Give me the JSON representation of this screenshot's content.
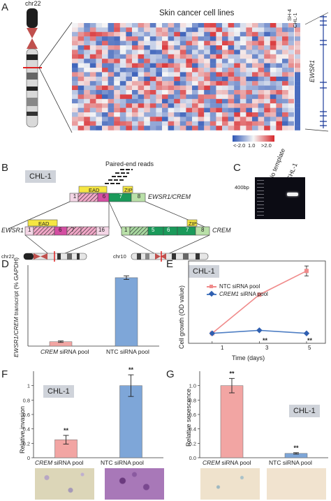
{
  "panels": {
    "A": {
      "letter": "A",
      "chrom_label": "chr22",
      "heatmap_title": "Skin cancer cell lines",
      "col_labels": [
        "SH-4",
        "CHL-1"
      ],
      "gene_label": "EWSR1",
      "legend_ticks": [
        "<-2.0",
        "1.0",
        ">2.0"
      ],
      "colors": {
        "low": "#2c55b5",
        "mid": "#f6f6f6",
        "high": "#d7262a"
      }
    },
    "B": {
      "letter": "B",
      "cell_line": "CHL-1",
      "reads_label": "Paired-end reads",
      "fusion_label": "EWSR1/CREM",
      "ewsr1_label": "EWSR1",
      "crem_label": "CREM",
      "ead_label": "EAD",
      "zip_label": "ZIP",
      "fusion_exons": [
        "1",
        "6",
        "7",
        "8"
      ],
      "ewsr1_exons": [
        "1",
        "6",
        "7",
        "16"
      ],
      "crem_exons": [
        "1",
        "5",
        "6",
        "7",
        "8"
      ],
      "chr22_label": "chr22",
      "chr10_label": "chr10"
    },
    "C": {
      "letter": "C",
      "lane_labels": [
        "No template",
        "CHL-1"
      ],
      "size_label": "400bp"
    },
    "D": {
      "letter": "D",
      "ylabel_italic": "EWSR1/CREM",
      "ylabel_rest": " transcript (% GAPDH)",
      "categories": [
        {
          "italic": "CREM",
          "rest": " siRNA pool"
        },
        {
          "italic": "",
          "rest": "NTC siRNA pool"
        }
      ]
    },
    "E": {
      "letter": "E",
      "cell_line": "CHL-1",
      "ylabel": "Cell growth (OD value)",
      "xlabel": "Time (days)",
      "x_ticks": [
        "1",
        "3",
        "5"
      ],
      "legend": [
        {
          "italic": "",
          "rest": "NTC siRNA pool"
        },
        {
          "italic": "CREM1",
          "rest": " siRNA pool"
        }
      ],
      "sig": "**"
    },
    "F": {
      "letter": "F",
      "cell_line": "CHL-1",
      "ylabel": "Relative invasion",
      "y_ticks": [
        "0",
        "0.2",
        "0.4",
        "0.6",
        "0.8",
        "1"
      ],
      "categories": [
        {
          "italic": "CREM",
          "rest": " siRNA pool"
        },
        {
          "italic": "",
          "rest": "NTC siRNA pool"
        }
      ],
      "sig": "**"
    },
    "G": {
      "letter": "G",
      "cell_line": "CHL-1",
      "ylabel": "Relative senescence",
      "y_ticks": [
        "0.0",
        "0.2",
        "0.4",
        "0.6",
        "0.8",
        "1.0"
      ],
      "categories": [
        {
          "italic": "CREM",
          "rest": " siRNA pool"
        },
        {
          "italic": "",
          "rest": "NTC siRNA pool"
        }
      ],
      "sig": "**"
    }
  },
  "chart_data": [
    {
      "type": "bar",
      "panel": "D",
      "categories": [
        "CREM siRNA pool",
        "NTC siRNA pool"
      ],
      "values": [
        0.6,
        9.3
      ],
      "errors": [
        0.1,
        0.25
      ],
      "colors": [
        "#f2a5a3",
        "#7ea6d8"
      ],
      "ylabel": "EWSR1/CREM transcript (% GAPDH)",
      "ylim": [
        0,
        11
      ]
    },
    {
      "type": "line",
      "panel": "E",
      "x": [
        1,
        3,
        5
      ],
      "series": [
        {
          "name": "NTC siRNA pool",
          "values": [
            0.4,
            1.95,
            2.9
          ],
          "errors": [
            0.03,
            0.03,
            0.2
          ],
          "color": "#f08a8a"
        },
        {
          "name": "CREM1 siRNA pool",
          "values": [
            0.4,
            0.52,
            0.4
          ],
          "errors": [
            0.02,
            0.02,
            0.02
          ],
          "color": "#4f7fc4"
        }
      ],
      "xlabel": "Time (days)",
      "ylabel": "Cell growth (OD value)",
      "xlim": [
        0,
        5.8
      ],
      "ylim": [
        0,
        3.3
      ]
    },
    {
      "type": "bar",
      "panel": "F",
      "categories": [
        "CREM siRNA pool",
        "NTC siRNA pool"
      ],
      "values": [
        0.25,
        1.0
      ],
      "errors": [
        0.06,
        0.15
      ],
      "colors": [
        "#f2a5a3",
        "#7ea6d8"
      ],
      "ylabel": "Relative invasion",
      "ylim": [
        0,
        1.2
      ]
    },
    {
      "type": "bar",
      "panel": "G",
      "categories": [
        "CREM siRNA pool",
        "NTC siRNA pool"
      ],
      "values": [
        1.0,
        0.06
      ],
      "errors": [
        0.1,
        0.01
      ],
      "colors": [
        "#f2a5a3",
        "#7ea6d8"
      ],
      "ylabel": "Relative senescence",
      "ylim": [
        0,
        1.2
      ]
    }
  ]
}
